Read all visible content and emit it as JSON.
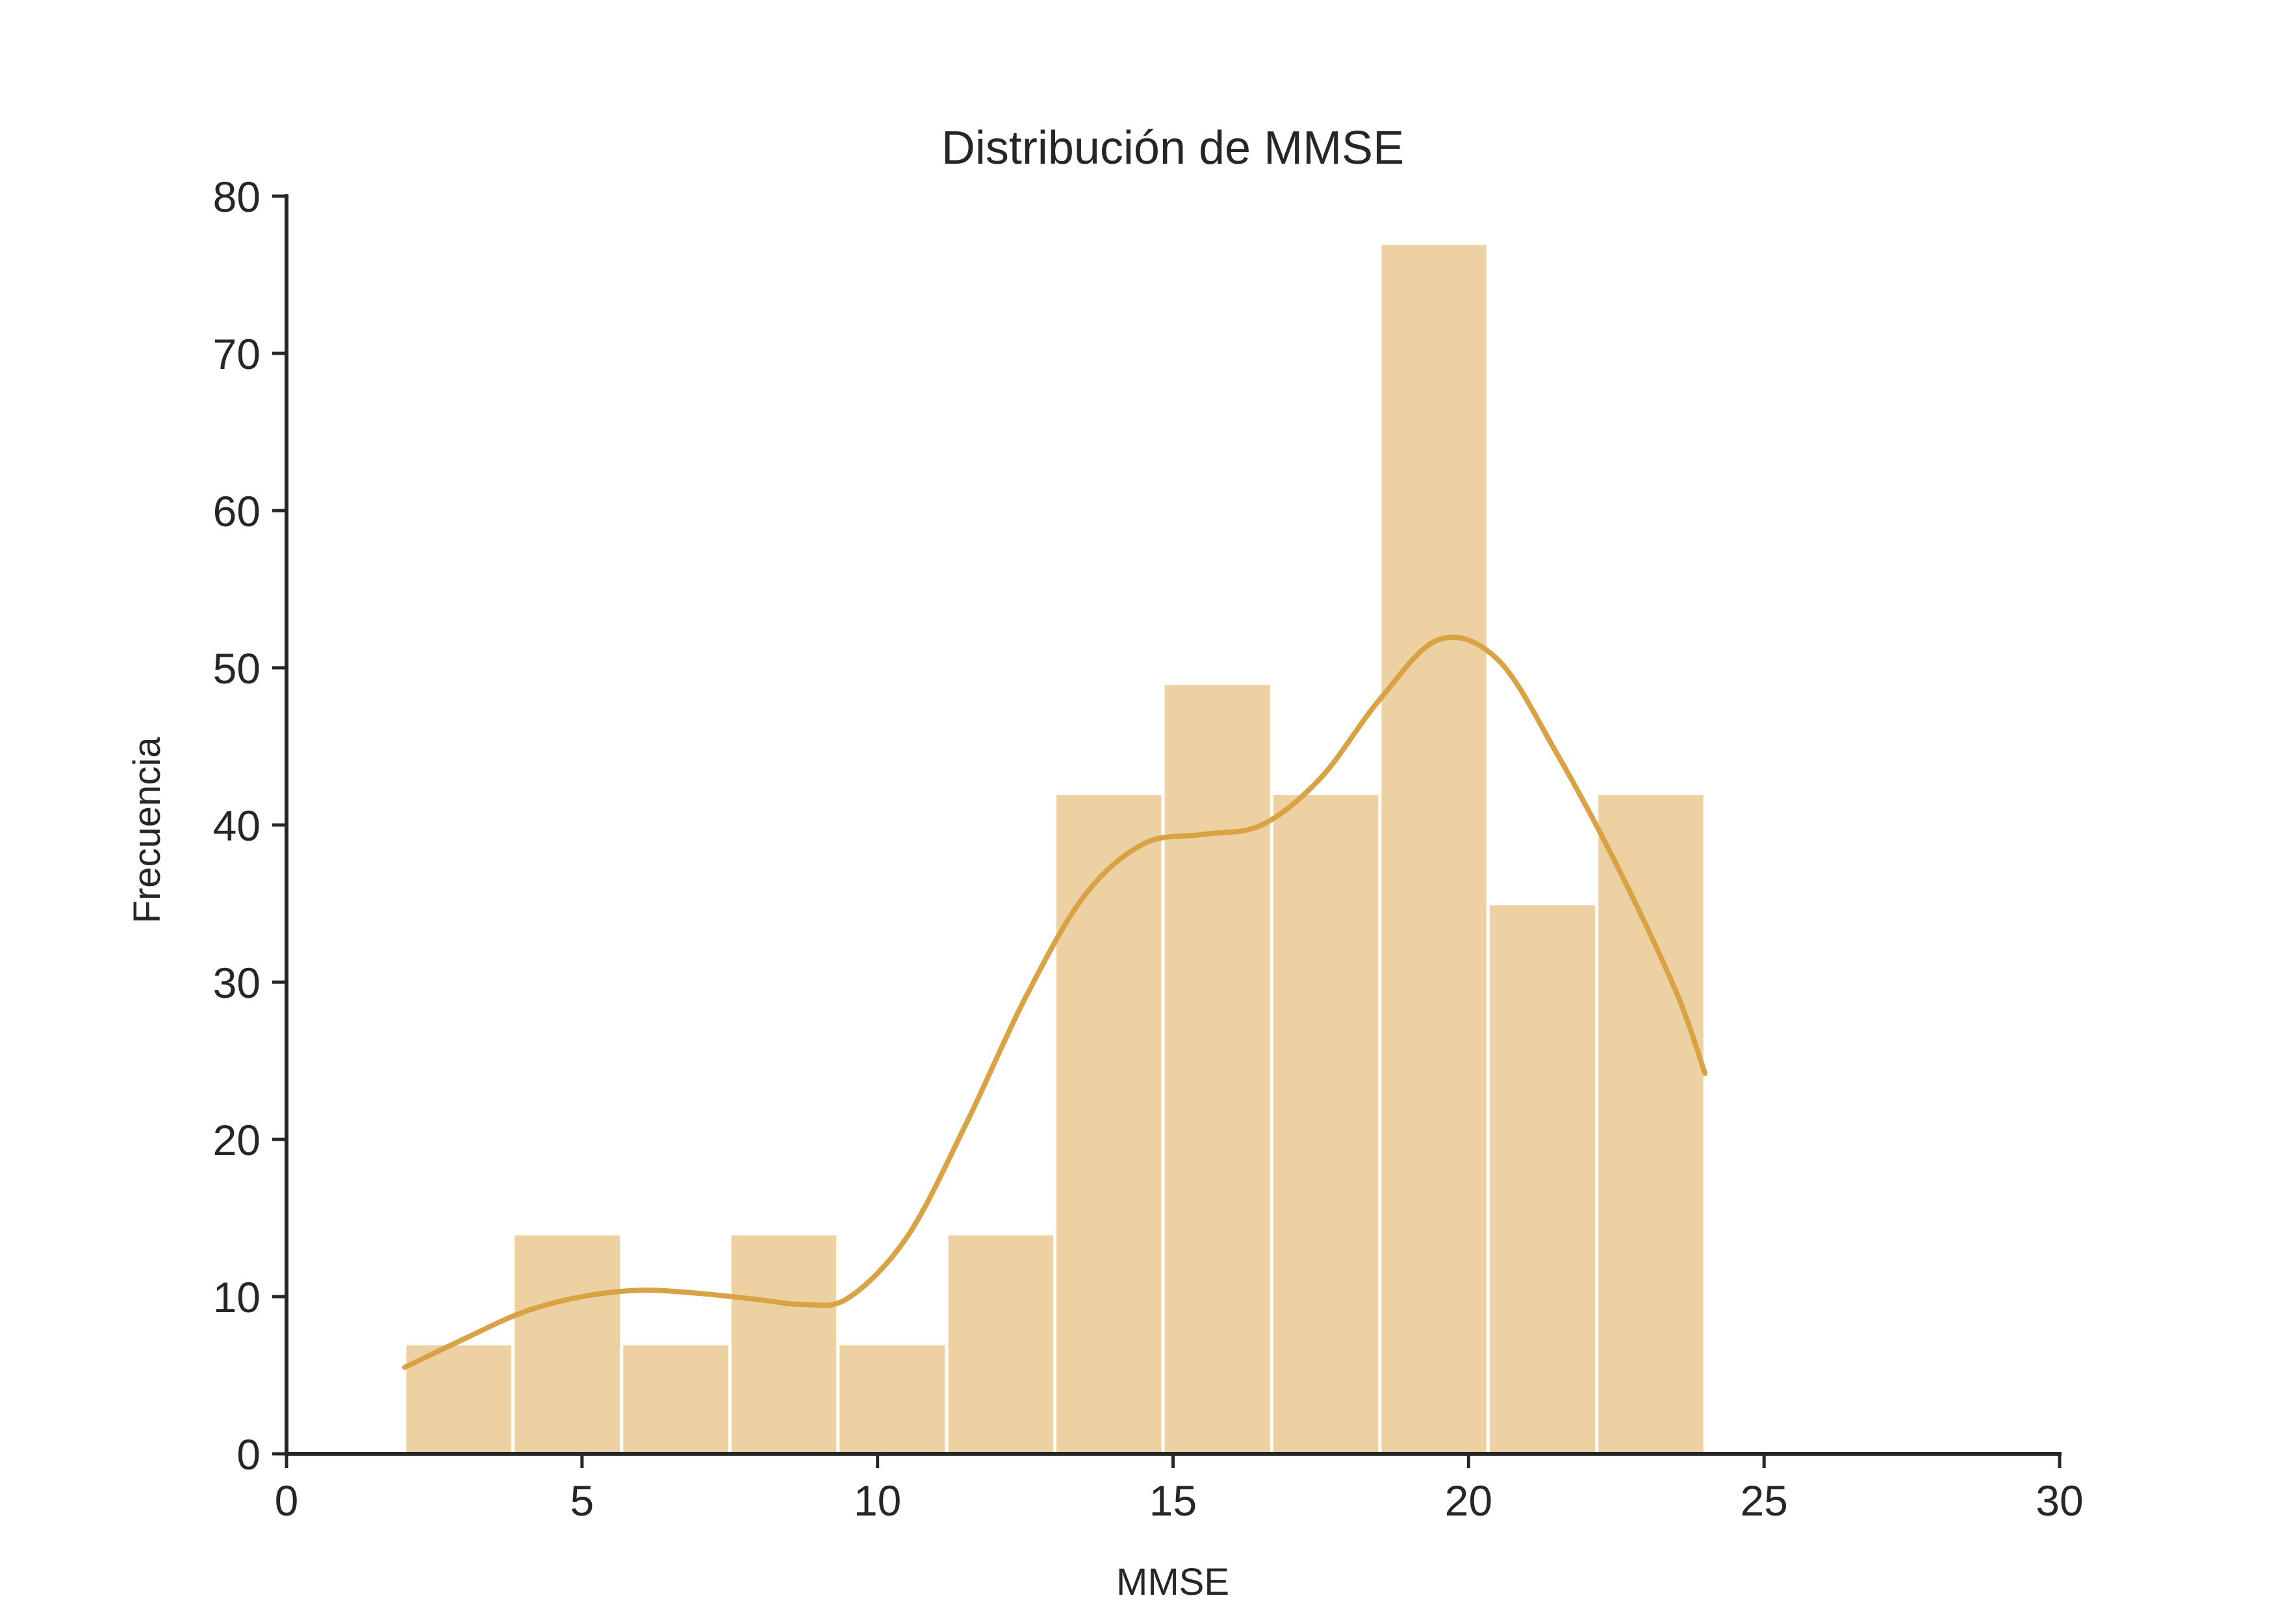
{
  "chart_data": {
    "type": "bar",
    "title": "Distribución de MMSE",
    "xlabel": "MMSE",
    "ylabel": "Frecuencia",
    "xlim": [
      0,
      30
    ],
    "ylim": [
      0,
      80
    ],
    "xticks": [
      0,
      5,
      10,
      15,
      20,
      25,
      30
    ],
    "yticks": [
      0,
      10,
      20,
      30,
      40,
      50,
      60,
      70,
      80
    ],
    "grid": false,
    "bins": [
      {
        "x0": 2.0,
        "x1": 3.83,
        "count": 7
      },
      {
        "x0": 3.83,
        "x1": 5.67,
        "count": 14
      },
      {
        "x0": 5.67,
        "x1": 7.5,
        "count": 7
      },
      {
        "x0": 7.5,
        "x1": 9.33,
        "count": 14
      },
      {
        "x0": 9.33,
        "x1": 11.17,
        "count": 7
      },
      {
        "x0": 11.17,
        "x1": 13.0,
        "count": 14
      },
      {
        "x0": 13.0,
        "x1": 14.83,
        "count": 42
      },
      {
        "x0": 14.83,
        "x1": 16.67,
        "count": 49
      },
      {
        "x0": 16.67,
        "x1": 18.5,
        "count": 42
      },
      {
        "x0": 18.5,
        "x1": 20.33,
        "count": 77
      },
      {
        "x0": 20.33,
        "x1": 22.17,
        "count": 35
      },
      {
        "x0": 22.17,
        "x1": 24.0,
        "count": 42
      }
    ],
    "kde": {
      "x": [
        2,
        3,
        4,
        5,
        6,
        7,
        8,
        8.75,
        9.5,
        10.5,
        11.5,
        12.5,
        13.5,
        14.5,
        15.5,
        16.5,
        17.5,
        18.5,
        19.5,
        20.5,
        21.5,
        22.5,
        23.5,
        24
      ],
      "y": [
        5.5,
        7.3,
        9.0,
        10.0,
        10.4,
        10.2,
        9.8,
        9.5,
        9.9,
        13.8,
        21.0,
        29.0,
        35.5,
        38.8,
        39.4,
        40.0,
        43.0,
        48.0,
        51.8,
        50.5,
        44.5,
        37.5,
        29.5,
        24.2
      ]
    },
    "colors": {
      "bar": "#EED1A2",
      "line": "#D9A244",
      "bar_edge": "#ffffff",
      "axis": "#262626",
      "text": "#262626"
    }
  }
}
